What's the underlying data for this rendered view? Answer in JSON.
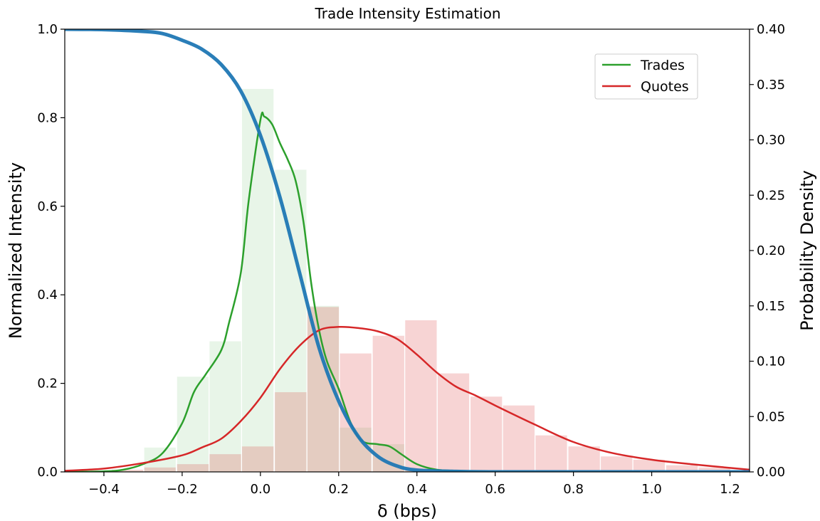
{
  "chart_data": {
    "type": "line",
    "title": "Trade Intensity Estimation",
    "xlabel": "δ (bps)",
    "ylabel_left": "Normalized Intensity",
    "ylabel_right": "Probability Density",
    "xlim": [
      -0.5,
      1.25
    ],
    "ylim_left": [
      0,
      1.0
    ],
    "ylim_right": [
      0,
      0.4
    ],
    "x_ticks": [
      -0.4,
      -0.2,
      0.0,
      0.2,
      0.4,
      0.6,
      0.8,
      1.0,
      1.2
    ],
    "x_tick_labels": [
      "−0.4",
      "−0.2",
      "0.0",
      "0.2",
      "0.4",
      "0.6",
      "0.8",
      "1.0",
      "1.2"
    ],
    "y_left_ticks": [
      0.0,
      0.2,
      0.4,
      0.6,
      0.8,
      1.0
    ],
    "y_left_tick_labels": [
      "0.0",
      "0.2",
      "0.4",
      "0.6",
      "0.8",
      "1.0"
    ],
    "y_right_ticks": [
      0.0,
      0.05,
      0.1,
      0.15,
      0.2,
      0.25,
      0.3,
      0.35,
      0.4
    ],
    "y_right_tick_labels": [
      "0.00",
      "0.05",
      "0.10",
      "0.15",
      "0.20",
      "0.25",
      "0.30",
      "0.35",
      "0.40"
    ],
    "grid": false,
    "legend_position": "top-right",
    "colors": {
      "intensity": "#1f77b4",
      "trades": "#2ca02c",
      "quotes": "#d62728",
      "trades_hist": "#2ca02c",
      "quotes_hist": "#d62728"
    },
    "legend": [
      "Trades",
      "Quotes"
    ],
    "histogram_bin_edges": [
      -0.5,
      -0.4167,
      -0.3333,
      -0.25,
      -0.1667,
      -0.0833,
      0.0,
      0.0833,
      0.1667,
      0.25,
      0.3333,
      0.4167,
      0.5,
      0.5833,
      0.6667,
      0.75,
      0.8333,
      0.9167,
      1.0,
      1.0833,
      1.1667,
      1.25
    ],
    "histograms": [
      {
        "name": "Trades",
        "axis": "right",
        "bin_left_edges": [
          -0.38,
          -0.297,
          -0.213,
          -0.13,
          -0.047,
          0.037,
          0.12,
          0.203,
          0.287,
          0.37
        ],
        "bin_width": 0.0833,
        "values": [
          0.001,
          0.022,
          0.086,
          0.118,
          0.346,
          0.273,
          0.15,
          0.04,
          0.025,
          0.001
        ]
      },
      {
        "name": "Quotes",
        "axis": "right",
        "bin_left_edges": [
          -0.38,
          -0.297,
          -0.213,
          -0.13,
          -0.047,
          0.037,
          0.12,
          0.203,
          0.287,
          0.37,
          0.453,
          0.537,
          0.62,
          0.703,
          0.787,
          0.87,
          0.953,
          1.037,
          1.12
        ],
        "bin_width": 0.0833,
        "values": [
          0.002,
          0.004,
          0.007,
          0.016,
          0.023,
          0.072,
          0.149,
          0.107,
          0.123,
          0.137,
          0.089,
          0.068,
          0.06,
          0.033,
          0.023,
          0.014,
          0.011,
          0.006,
          0.004
        ]
      }
    ],
    "series": [
      {
        "key": "intensity",
        "axis": "left",
        "x": [
          -0.5,
          -0.4,
          -0.3,
          -0.25,
          -0.2,
          -0.15,
          -0.1,
          -0.05,
          0.0,
          0.05,
          0.1,
          0.15,
          0.2,
          0.25,
          0.3,
          0.35,
          0.4,
          0.5,
          0.6,
          0.8,
          1.0,
          1.25
        ],
        "values": [
          1.0,
          0.999,
          0.995,
          0.99,
          0.975,
          0.955,
          0.92,
          0.86,
          0.76,
          0.62,
          0.45,
          0.28,
          0.16,
          0.08,
          0.035,
          0.013,
          0.004,
          0.001,
          0.0,
          0.0,
          0.0,
          0.0
        ]
      },
      {
        "key": "trades",
        "name": "Trades",
        "axis": "right",
        "x": [
          -0.5,
          -0.4,
          -0.35,
          -0.3,
          -0.25,
          -0.2,
          -0.17,
          -0.14,
          -0.1,
          -0.08,
          -0.05,
          -0.03,
          0.0,
          0.01,
          0.03,
          0.05,
          0.07,
          0.09,
          0.11,
          0.13,
          0.15,
          0.17,
          0.2,
          0.23,
          0.26,
          0.3,
          0.33,
          0.36,
          0.4,
          0.45,
          0.5,
          0.6,
          0.8,
          1.25
        ],
        "values": [
          0.0,
          0.0005,
          0.002,
          0.007,
          0.017,
          0.044,
          0.072,
          0.088,
          0.11,
          0.135,
          0.18,
          0.245,
          0.318,
          0.321,
          0.314,
          0.297,
          0.282,
          0.263,
          0.226,
          0.17,
          0.128,
          0.1,
          0.075,
          0.045,
          0.028,
          0.025,
          0.023,
          0.016,
          0.007,
          0.002,
          0.001,
          0.0005,
          0.0002,
          0.0
        ]
      },
      {
        "key": "quotes",
        "name": "Quotes",
        "axis": "right",
        "x": [
          -0.5,
          -0.4,
          -0.3,
          -0.2,
          -0.15,
          -0.1,
          -0.05,
          0.0,
          0.05,
          0.1,
          0.15,
          0.2,
          0.25,
          0.3,
          0.35,
          0.4,
          0.45,
          0.5,
          0.55,
          0.6,
          0.7,
          0.8,
          0.9,
          1.0,
          1.1,
          1.25
        ],
        "values": [
          0.001,
          0.003,
          0.008,
          0.015,
          0.022,
          0.03,
          0.046,
          0.067,
          0.093,
          0.114,
          0.128,
          0.131,
          0.13,
          0.127,
          0.12,
          0.106,
          0.09,
          0.077,
          0.069,
          0.06,
          0.043,
          0.027,
          0.017,
          0.011,
          0.007,
          0.002
        ]
      }
    ]
  }
}
